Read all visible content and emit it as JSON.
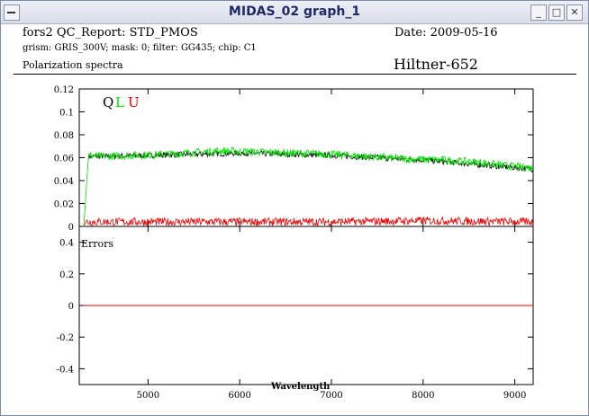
{
  "window": {
    "title": "MIDAS_02 graph_1"
  },
  "report": {
    "header_left": "fors2  QC_Report:  STD_PMOS",
    "date": "Date:  2009-05-16",
    "subheader": "grism: GRIS_300V; mask: 0; filter: GG435; chip: C1",
    "section": "Polarization spectra",
    "object": "Hiltner-652"
  },
  "colors": {
    "Q": "#000000",
    "L": "#00e600",
    "U": "#ee0000"
  },
  "chart_data": [
    {
      "type": "line",
      "legend": [
        "Q",
        "L",
        "U"
      ],
      "legend_placement": "top-left",
      "xlim": [
        4250,
        9200
      ],
      "ylim": [
        0,
        0.12
      ],
      "yticks": [
        "0",
        "0.02",
        "0.04",
        "0.06",
        "0.08",
        "0.1",
        "0.12"
      ],
      "series": [
        {
          "name": "L",
          "x": [
            4300,
            4350,
            4500,
            4800,
            5200,
            5600,
            5800,
            6200,
            6600,
            7000,
            7400,
            7800,
            8200,
            8600,
            8900,
            9200
          ],
          "values": [
            0.002,
            0.062,
            0.061,
            0.062,
            0.063,
            0.065,
            0.066,
            0.065,
            0.064,
            0.063,
            0.061,
            0.059,
            0.058,
            0.056,
            0.053,
            0.051
          ]
        },
        {
          "name": "Q",
          "x": [
            4350,
            5000,
            6000,
            7000,
            8000,
            9200
          ],
          "values": [
            0.061,
            0.062,
            0.064,
            0.062,
            0.058,
            0.05
          ]
        },
        {
          "name": "U",
          "x": [
            4300,
            5000,
            6000,
            7000,
            8000,
            9200
          ],
          "values": [
            0.004,
            0.004,
            0.004,
            0.004,
            0.005,
            0.004
          ]
        }
      ]
    },
    {
      "type": "line",
      "title": "Errors",
      "xlabel": "Wavelength",
      "xlim": [
        4250,
        9200
      ],
      "ylim": [
        -0.5,
        0.5
      ],
      "xticks": [
        "5000",
        "6000",
        "7000",
        "8000",
        "9000"
      ],
      "yticks": [
        "-0.4",
        "-0.2",
        "0",
        "0.2",
        "0.4"
      ],
      "series": [
        {
          "name": "U",
          "x": [
            4300,
            9200
          ],
          "values": [
            0,
            0
          ]
        }
      ]
    }
  ]
}
